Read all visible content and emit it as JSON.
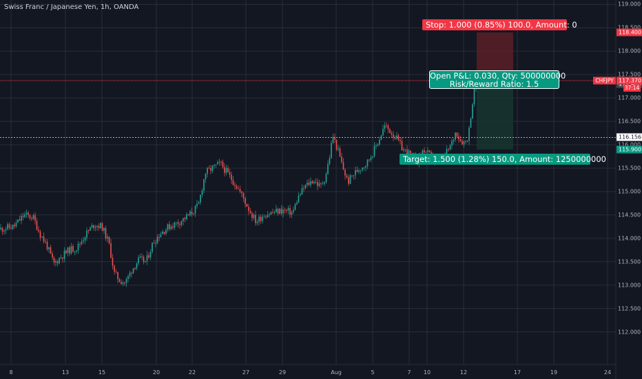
{
  "title": "Swiss Franc / Japanese Yen, 1h, OANDA",
  "colors": {
    "background": "#131722",
    "grid": "#2a2e39",
    "up": "#26a69a",
    "down": "#ef5350",
    "stop_zone": "#5b1f27",
    "target_zone": "#17362f",
    "price_line": "#f23645",
    "dotted_line": "#d1d4dc"
  },
  "position": {
    "stop_label": "Stop: 1.000 (0.85%) 100.0, Amount: 0",
    "pnl_line1": "Open P&L: 0.030, Qty: 500000000",
    "pnl_line2": "Risk/Reward Ratio: 1.5",
    "target_label": "Target: 1.500 (1.28%) 150.0, Amount: 1250000000",
    "entry": 117.4,
    "stop": 118.4,
    "target": 115.9
  },
  "price_axis_labels": {
    "stop": "118.400",
    "entry": "117.400",
    "last": "117.370",
    "dotted": "116.156",
    "target": "115.900",
    "symbol": "CHFJPY",
    "countdown": "37:14"
  },
  "chart_data": {
    "type": "candlestick",
    "title": "Swiss Franc / Japanese Yen, 1h, OANDA",
    "symbol": "CHFJPY",
    "timeframe": "1h",
    "ylim": [
      111.7,
      119.05
    ],
    "y_ticks": [
      "119.000",
      "118.500",
      "118.000",
      "117.500",
      "117.000",
      "116.500",
      "116.000",
      "115.500",
      "115.000",
      "114.500",
      "114.000",
      "113.500",
      "113.000",
      "112.500",
      "112.000"
    ],
    "x_ticks": [
      "8",
      "13",
      "15",
      "20",
      "22",
      "27",
      "29",
      "Aug",
      "5",
      "7",
      "10",
      "12",
      "17",
      "19",
      "24"
    ],
    "grid": true,
    "price_path": [
      [
        0,
        114.2
      ],
      [
        20,
        114.25
      ],
      [
        35,
        114.5
      ],
      [
        48,
        114.45
      ],
      [
        58,
        114.1
      ],
      [
        68,
        113.85
      ],
      [
        78,
        113.45
      ],
      [
        88,
        113.6
      ],
      [
        100,
        113.75
      ],
      [
        112,
        113.8
      ],
      [
        125,
        114.1
      ],
      [
        137,
        114.3
      ],
      [
        148,
        114.25
      ],
      [
        158,
        113.9
      ],
      [
        166,
        113.25
      ],
      [
        174,
        113.1
      ],
      [
        182,
        113.05
      ],
      [
        192,
        113.35
      ],
      [
        202,
        113.55
      ],
      [
        212,
        113.5
      ],
      [
        222,
        113.9
      ],
      [
        232,
        114.1
      ],
      [
        245,
        114.25
      ],
      [
        260,
        114.35
      ],
      [
        275,
        114.5
      ],
      [
        288,
        114.7
      ],
      [
        298,
        115.4
      ],
      [
        308,
        115.5
      ],
      [
        320,
        115.6
      ],
      [
        332,
        115.35
      ],
      [
        342,
        115.15
      ],
      [
        352,
        114.9
      ],
      [
        362,
        114.6
      ],
      [
        372,
        114.35
      ],
      [
        382,
        114.5
      ],
      [
        395,
        114.55
      ],
      [
        410,
        114.6
      ],
      [
        425,
        114.55
      ],
      [
        432,
        114.85
      ],
      [
        442,
        115.1
      ],
      [
        455,
        115.25
      ],
      [
        465,
        115.1
      ],
      [
        472,
        115.3
      ],
      [
        478,
        115.7
      ],
      [
        483,
        116.2
      ],
      [
        490,
        115.9
      ],
      [
        498,
        115.5
      ],
      [
        505,
        115.2
      ],
      [
        512,
        115.35
      ],
      [
        522,
        115.5
      ],
      [
        532,
        115.6
      ],
      [
        540,
        115.8
      ],
      [
        550,
        116.1
      ],
      [
        558,
        116.4
      ],
      [
        566,
        116.3
      ],
      [
        575,
        116.15
      ],
      [
        585,
        115.9
      ],
      [
        595,
        115.8
      ],
      [
        605,
        115.65
      ],
      [
        615,
        115.9
      ],
      [
        625,
        115.75
      ],
      [
        635,
        115.6
      ],
      [
        645,
        115.75
      ],
      [
        655,
        116.0
      ],
      [
        662,
        116.3
      ],
      [
        668,
        116.1
      ],
      [
        675,
        116.05
      ],
      [
        680,
        116.2
      ],
      [
        684,
        116.7
      ],
      [
        688,
        117.1
      ],
      [
        692,
        117.37
      ]
    ]
  }
}
